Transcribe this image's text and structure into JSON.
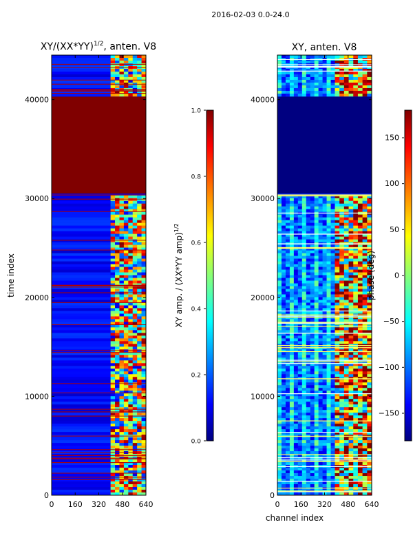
{
  "chart_data": [
    {
      "type": "heatmap",
      "suptitle": "2016-02-03 0.0-24.0",
      "title": "XY/(XX*YY)",
      "title_power": "1/2",
      "title_suffix": ", anten. V8",
      "xlabel": "",
      "ylabel": "time index",
      "xlim": [
        0,
        640
      ],
      "ylim": [
        0,
        44500
      ],
      "xticks": [
        0,
        160,
        320,
        480,
        640
      ],
      "yticks": [
        0,
        10000,
        20000,
        30000,
        40000
      ],
      "colormap": "jet",
      "colorbar": {
        "label": "XY amp. / (XX*YY amp)",
        "label_power": "1/2",
        "range": [
          0.0,
          1.0
        ],
        "ticks": [
          "0.0",
          "0.2",
          "0.4",
          "0.6",
          "0.8",
          "1.0"
        ]
      },
      "regions": [
        {
          "y0": 30500,
          "y1": 40300,
          "x0": 0,
          "x1": 640,
          "value": 1.0,
          "description": "saturated block"
        },
        {
          "y0": 0,
          "y1": 44500,
          "x0": 400,
          "x1": 640,
          "value": 0.55,
          "description": "high band"
        },
        {
          "y0": 0,
          "y1": 44500,
          "x0": 0,
          "x1": 400,
          "value": 0.1,
          "description": "low background"
        }
      ]
    },
    {
      "type": "heatmap",
      "title": "XY, anten. V8",
      "xlabel": "channel index",
      "ylabel": "",
      "xlim": [
        0,
        640
      ],
      "ylim": [
        0,
        44500
      ],
      "xticks": [
        0,
        160,
        320,
        480,
        640
      ],
      "yticks": [
        0,
        10000,
        20000,
        30000,
        40000
      ],
      "colormap": "jet",
      "colorbar": {
        "label": "phase (deg)",
        "range": [
          -180,
          180
        ],
        "ticks": [
          "150",
          "100",
          "50",
          "0",
          "−50",
          "−100",
          "−150"
        ]
      },
      "regions": [
        {
          "y0": 30500,
          "y1": 40300,
          "x0": 0,
          "x1": 640,
          "value": -180,
          "description": "flat block"
        },
        {
          "y0": 0,
          "y1": 44500,
          "x0": 390,
          "x1": 640,
          "value": 60,
          "description": "high band"
        },
        {
          "y0": 0,
          "y1": 44500,
          "x0": 0,
          "x1": 390,
          "value": -120,
          "description": "background"
        }
      ]
    }
  ]
}
